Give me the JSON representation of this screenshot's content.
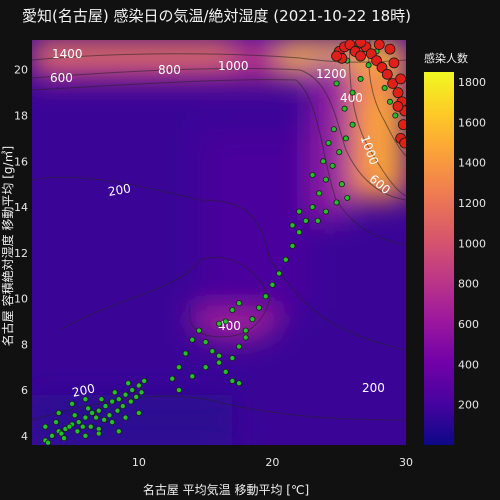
{
  "title": "愛知(名古屋) 感染日の気温/絶対湿度 (2021-10-22 18時)",
  "chart_data": {
    "type": "scatter",
    "title": "愛知(名古屋) 感染日の気温/絶対湿度 (2021-10-22 18時)",
    "xlabel": "名古屋 平均気温 移動平均 [℃]",
    "ylabel": "名古屋 容積絶対湿度 移動平均 [g/㎥]",
    "xlim": [
      2,
      30
    ],
    "ylim": [
      3.6,
      21.3
    ],
    "xticks": [
      10,
      20,
      30
    ],
    "yticks": [
      4,
      6,
      8,
      10,
      12,
      14,
      16,
      18,
      20
    ],
    "contour_labels": [
      "1400",
      "600",
      "800",
      "1000",
      "1200",
      "400",
      "1000",
      "600",
      "200",
      "400",
      "200",
      "200"
    ],
    "colorbar": {
      "title": "感染人数",
      "range": [
        0,
        1850
      ],
      "ticks": [
        200,
        400,
        600,
        800,
        1000,
        1200,
        1400,
        1600,
        1800
      ],
      "colors": [
        "#0d0887",
        "#46039f",
        "#7201a8",
        "#9c179e",
        "#bd3786",
        "#d8576b",
        "#ed7953",
        "#fb9f3a",
        "#fdca26",
        "#f0f921"
      ]
    },
    "series": [
      {
        "marker_color": "#22c02a",
        "points": [
          [
            3.0,
            3.8
          ],
          [
            3.5,
            4.0
          ],
          [
            4.0,
            4.2
          ],
          [
            4.5,
            4.3
          ],
          [
            5.0,
            4.5
          ],
          [
            5.5,
            4.6
          ],
          [
            6.0,
            4.8
          ],
          [
            6.5,
            5.0
          ],
          [
            7.0,
            5.1
          ],
          [
            7.5,
            5.3
          ],
          [
            8.0,
            5.5
          ],
          [
            8.5,
            5.6
          ],
          [
            9.0,
            5.8
          ],
          [
            9.5,
            6.0
          ],
          [
            10.0,
            6.2
          ],
          [
            10.4,
            6.4
          ],
          [
            3.2,
            3.7
          ],
          [
            4.2,
            4.1
          ],
          [
            5.2,
            4.9
          ],
          [
            6.2,
            5.2
          ],
          [
            7.2,
            5.6
          ],
          [
            8.2,
            5.9
          ],
          [
            9.2,
            6.3
          ],
          [
            3.8,
            4.6
          ],
          [
            4.8,
            4.4
          ],
          [
            5.8,
            4.4
          ],
          [
            6.8,
            4.8
          ],
          [
            7.8,
            4.9
          ],
          [
            8.8,
            5.3
          ],
          [
            9.8,
            5.7
          ],
          [
            4.4,
            3.9
          ],
          [
            5.4,
            4.2
          ],
          [
            6.4,
            4.4
          ],
          [
            7.4,
            4.7
          ],
          [
            8.4,
            5.1
          ],
          [
            9.4,
            5.5
          ],
          [
            10.2,
            5.9
          ],
          [
            6.0,
            4.0
          ],
          [
            7.0,
            4.3
          ],
          [
            8.0,
            4.6
          ],
          [
            9.0,
            4.8
          ],
          [
            10.0,
            5.0
          ],
          [
            3.0,
            4.4
          ],
          [
            4.0,
            5.0
          ],
          [
            5.0,
            5.4
          ],
          [
            6.0,
            5.6
          ],
          [
            7.0,
            4.1
          ],
          [
            8.5,
            4.2
          ],
          [
            12.5,
            6.5
          ],
          [
            13.0,
            7.0
          ],
          [
            13.5,
            7.6
          ],
          [
            14.0,
            8.2
          ],
          [
            14.5,
            8.6
          ],
          [
            15.0,
            8.1
          ],
          [
            15.5,
            7.7
          ],
          [
            16.0,
            7.2
          ],
          [
            16.5,
            6.8
          ],
          [
            17.0,
            7.4
          ],
          [
            17.5,
            7.9
          ],
          [
            18.0,
            8.6
          ],
          [
            18.5,
            9.1
          ],
          [
            19.0,
            9.6
          ],
          [
            19.5,
            10.1
          ],
          [
            20.0,
            10.6
          ],
          [
            20.5,
            11.1
          ],
          [
            21.0,
            11.7
          ],
          [
            21.5,
            12.3
          ],
          [
            22.0,
            12.9
          ],
          [
            22.5,
            13.4
          ],
          [
            23.0,
            14.0
          ],
          [
            23.5,
            14.6
          ],
          [
            24.0,
            15.2
          ],
          [
            24.5,
            15.8
          ],
          [
            25.0,
            16.4
          ],
          [
            25.5,
            17.0
          ],
          [
            26.0,
            17.6
          ],
          [
            13.0,
            6.0
          ],
          [
            14.0,
            6.6
          ],
          [
            15.0,
            7.0
          ],
          [
            16.0,
            7.5
          ],
          [
            17.0,
            6.4
          ],
          [
            17.5,
            6.3
          ],
          [
            16.5,
            9.0
          ],
          [
            17.0,
            9.5
          ],
          [
            17.5,
            9.8
          ],
          [
            16.0,
            8.9
          ],
          [
            18.0,
            8.3
          ],
          [
            21.5,
            13.2
          ],
          [
            22.0,
            13.8
          ],
          [
            23.0,
            15.4
          ],
          [
            23.8,
            16.0
          ],
          [
            24.2,
            16.8
          ],
          [
            24.8,
            14.2
          ],
          [
            25.2,
            15.0
          ],
          [
            25.6,
            14.4
          ],
          [
            24.0,
            13.8
          ],
          [
            23.4,
            13.4
          ],
          [
            24.6,
            17.4
          ],
          [
            25.4,
            18.3
          ],
          [
            26.0,
            19.0
          ],
          [
            26.6,
            19.6
          ],
          [
            27.2,
            20.2
          ],
          [
            27.8,
            20.8
          ],
          [
            28.4,
            19.2
          ],
          [
            28.8,
            18.6
          ],
          [
            29.2,
            18.0
          ],
          [
            24.8,
            19.4
          ],
          [
            25.6,
            20.4
          ],
          [
            26.4,
            21.0
          ]
        ]
      },
      {
        "marker_color": "#e02018",
        "points": [
          [
            25.0,
            20.8
          ],
          [
            25.4,
            21.0
          ],
          [
            25.8,
            21.1
          ],
          [
            26.2,
            20.8
          ],
          [
            26.6,
            20.6
          ],
          [
            27.0,
            21.0
          ],
          [
            27.4,
            20.7
          ],
          [
            27.8,
            20.4
          ],
          [
            28.2,
            20.1
          ],
          [
            28.6,
            19.8
          ],
          [
            29.0,
            19.4
          ],
          [
            29.4,
            19.0
          ],
          [
            29.7,
            18.6
          ],
          [
            29.9,
            18.2
          ],
          [
            29.8,
            17.6
          ],
          [
            29.6,
            17.0
          ],
          [
            29.9,
            16.8
          ],
          [
            29.4,
            18.4
          ],
          [
            28.8,
            20.9
          ],
          [
            28.0,
            21.1
          ],
          [
            26.6,
            21.2
          ],
          [
            25.2,
            20.5
          ],
          [
            24.8,
            20.6
          ],
          [
            29.1,
            20.3
          ],
          [
            29.6,
            19.6
          ]
        ]
      }
    ]
  }
}
